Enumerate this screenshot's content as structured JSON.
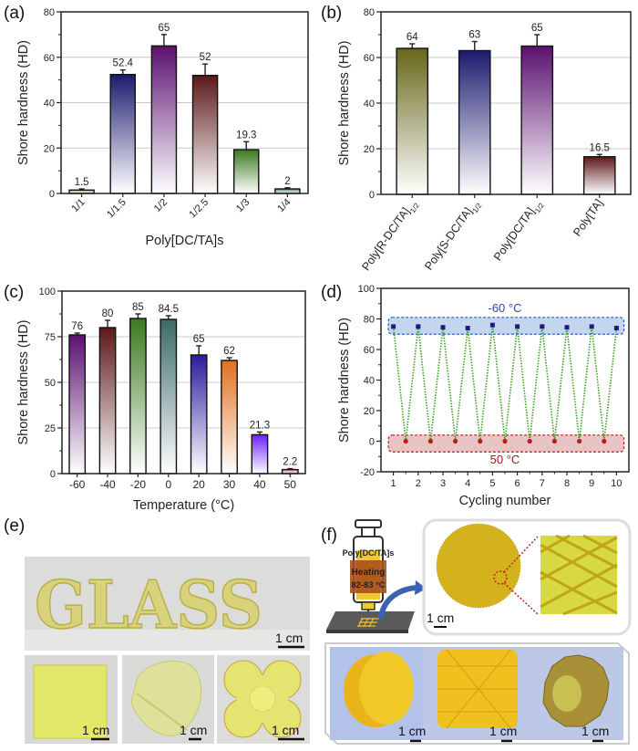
{
  "chart_data": [
    {
      "panel": "(a)",
      "type": "bar",
      "xlabel": "Poly[DC/TA]s",
      "ylabel": "Shore hardness (HD)",
      "ylim": [
        0,
        80
      ],
      "yticks": [
        0,
        20,
        40,
        60,
        80
      ],
      "grid": true,
      "categories": [
        "1/1",
        "1/1.5",
        "1/2",
        "1/2.5",
        "1/3",
        "1/4"
      ],
      "values": [
        1.5,
        52.4,
        65,
        52,
        19.3,
        2
      ],
      "errors": [
        0.5,
        2,
        5,
        5,
        3.5,
        0.5
      ],
      "value_labels": [
        "1.5",
        "52.4",
        "65",
        "52",
        "19.3",
        "2"
      ],
      "colors": [
        "#a8a870",
        "#1c1a6e",
        "#5c1070",
        "#5c1818",
        "#3a7a1e",
        "#5a8482"
      ]
    },
    {
      "panel": "(b)",
      "type": "bar",
      "ylabel": "Shore hardness (HD)",
      "ylim": [
        0,
        80
      ],
      "yticks": [
        0,
        20,
        40,
        60,
        80
      ],
      "grid": true,
      "categories": [
        {
          "main": "Poly[R-DC/TA]",
          "sub": "1/2"
        },
        {
          "main": "Poly[S-DC/TA]",
          "sub": "1/2"
        },
        {
          "main": "Poly[DC/TA]",
          "sub": "1/2"
        },
        {
          "main": "Poly[TA]",
          "sub": ""
        }
      ],
      "values": [
        64,
        63,
        65,
        16.5
      ],
      "errors": [
        2,
        4,
        5,
        1
      ],
      "value_labels": [
        "64",
        "63",
        "65",
        "16.5"
      ],
      "colors": [
        "#66661a",
        "#1c1a6e",
        "#5c1070",
        "#5c1818"
      ]
    },
    {
      "panel": "(c)",
      "type": "bar",
      "xlabel": "Temperature (°C)",
      "ylabel": "Shore hardness (HD)",
      "ylim": [
        0,
        100
      ],
      "yticks": [
        0,
        25,
        50,
        75,
        100
      ],
      "grid": true,
      "categories": [
        "-60",
        "-40",
        "-20",
        "0",
        "20",
        "30",
        "40",
        "50"
      ],
      "values": [
        76,
        80,
        85,
        84.5,
        65,
        62,
        21.3,
        2.2
      ],
      "errors": [
        1,
        4,
        2.5,
        2,
        5,
        1.5,
        1.5,
        0.5
      ],
      "value_labels": [
        "76",
        "80",
        "85",
        "84.5",
        "65",
        "62",
        "21.3",
        "2.2"
      ],
      "colors": [
        "#5c1070",
        "#5c1818",
        "#3a7a1e",
        "#3a6a68",
        "#2a1aa0",
        "#e07020",
        "#6a20ff",
        "#e070a0"
      ]
    },
    {
      "panel": "(d)",
      "type": "line",
      "xlabel": "Cycling number",
      "ylabel": "Shore hardness (HD)",
      "ylim": [
        -20,
        100
      ],
      "yticks": [
        -20,
        0,
        20,
        40,
        60,
        80,
        100
      ],
      "xlim": [
        0.5,
        10.5
      ],
      "xticks": [
        1,
        2,
        3,
        4,
        5,
        6,
        7,
        8,
        9,
        10
      ],
      "grid": false,
      "line_color": "#3aa020",
      "line_style": "dotted",
      "series": [
        {
          "name": "-60 °C",
          "color": "#1c1a7e",
          "marker": "square",
          "x": [
            1,
            2,
            3,
            4,
            5,
            6,
            7,
            8,
            9,
            10
          ],
          "y": [
            75,
            75,
            74.5,
            74,
            76,
            75,
            75,
            74.5,
            75,
            74
          ]
        },
        {
          "name": "50 °C",
          "color": "#c01818",
          "marker": "circle",
          "x": [
            1.5,
            2.5,
            3.5,
            4.5,
            5.5,
            6.5,
            7.5,
            8.5,
            9.5
          ],
          "y": [
            0,
            0,
            0,
            0,
            0,
            0,
            0,
            0,
            0
          ]
        }
      ],
      "bands": [
        {
          "label": "-60 °C",
          "y_range": [
            70,
            81
          ],
          "fill": "#c4d6ee",
          "stroke": "#2a5ad0",
          "label_color": "#2a4aa0"
        },
        {
          "label": "50 °C",
          "y_range": [
            -7,
            4
          ],
          "fill": "#e8c4c4",
          "stroke": "#b02020",
          "label_color": "#a01818"
        }
      ]
    }
  ],
  "panel_e": {
    "label": "(e)",
    "word": "GLASS",
    "scale_bar": "1 cm",
    "photo_color": "#d8d27a"
  },
  "panel_f": {
    "label": "(f)",
    "material": "Poly[DC/TA]s",
    "heating": "Heating",
    "temperature": "82-83 °C",
    "scale_bar": "1 cm",
    "arrow_color": "#3a62b0",
    "print_color": "#d8b820"
  }
}
